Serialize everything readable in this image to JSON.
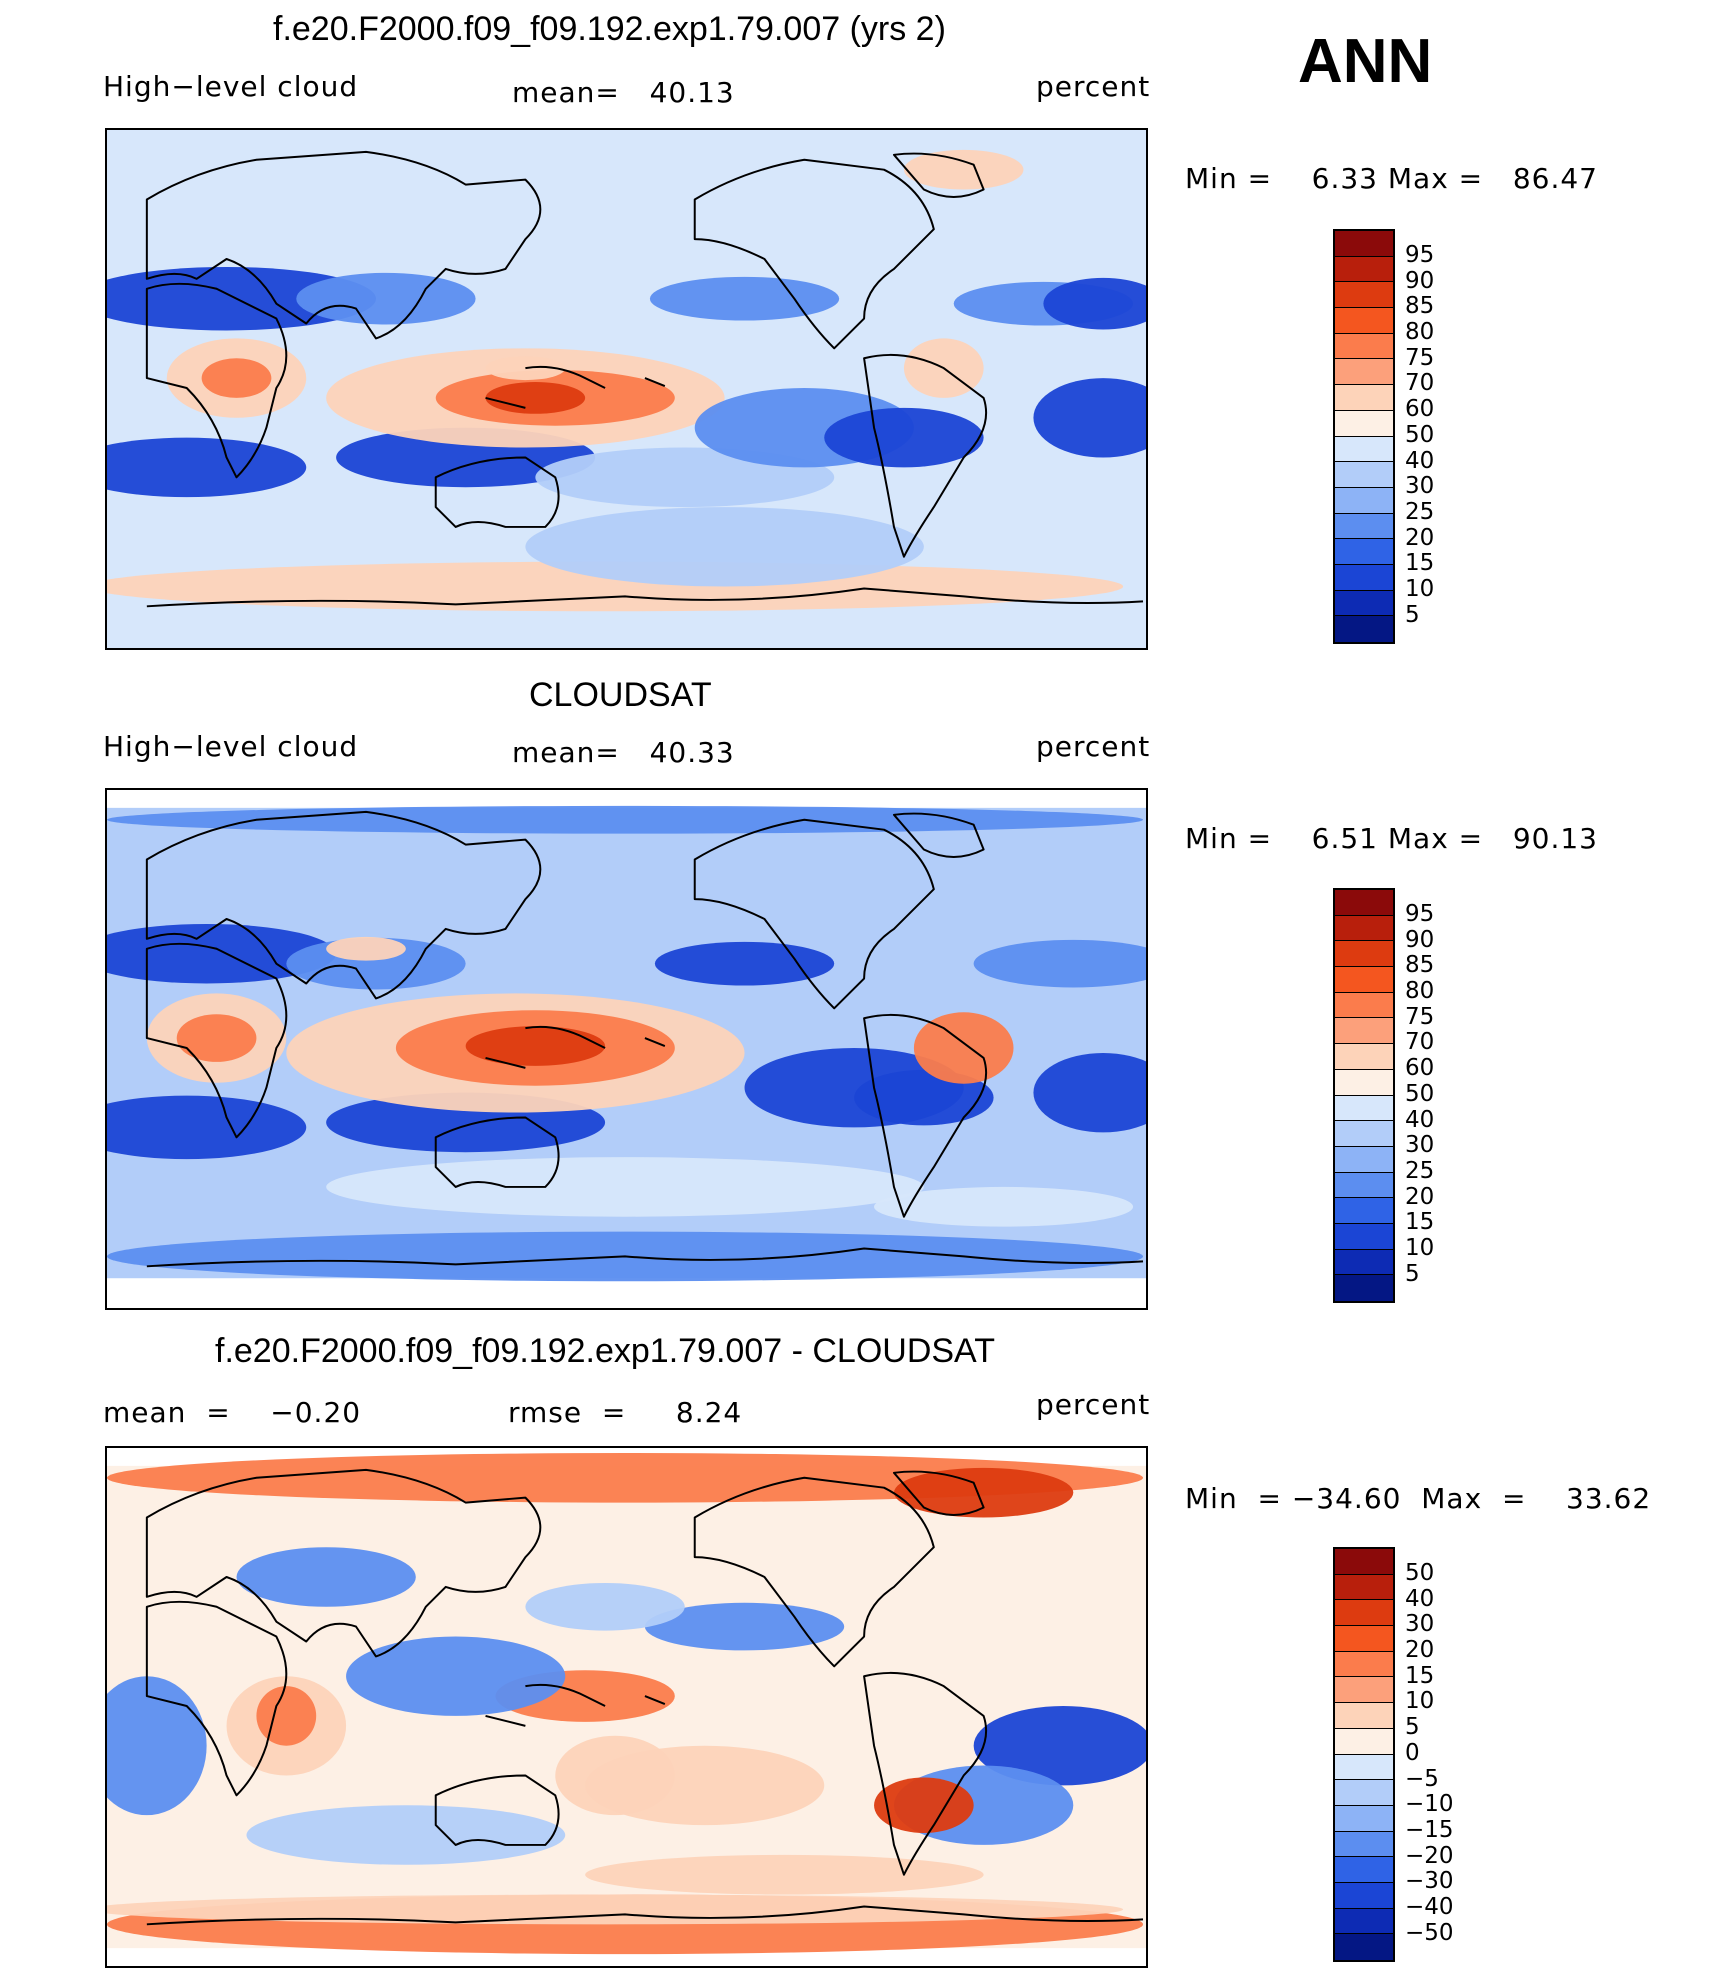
{
  "season": "ANN",
  "panels": [
    {
      "title": "f.e20.F2000.f09_f09.192.exp1.79.007 (yrs 2)",
      "left_label": "High−level cloud",
      "center_label": "mean=   40.13",
      "right_label": "percent",
      "minmax": "Min =    6.33 Max =   86.47",
      "colorbar": {
        "labels": [
          "95",
          "90",
          "85",
          "80",
          "75",
          "70",
          "60",
          "50",
          "40",
          "30",
          "25",
          "20",
          "15",
          "10",
          "5"
        ],
        "colors": [
          "#8b0a0a",
          "#b81f0c",
          "#dd3b10",
          "#f4561f",
          "#fb7c4c",
          "#fca07b",
          "#fdd3b9",
          "#fdf0e5",
          "#d7e7fb",
          "#b2cdf9",
          "#8db3f6",
          "#5c8ef0",
          "#2f63e6",
          "#1b45d5",
          "#0d2bb4",
          "#041784"
        ]
      },
      "palette": {
        "ocean": "#d7e7fb",
        "light_blue": "#b2cdf9",
        "mid_blue": "#5c8ef0",
        "dark_blue": "#1b45d5",
        "light_red": "#fdd3b9",
        "mid_red": "#fb7c4c",
        "dark_red": "#dd3b10"
      }
    },
    {
      "title": "CLOUDSAT",
      "left_label": "High−level cloud",
      "center_label": "mean=   40.33",
      "right_label": "percent",
      "minmax": "Min =    6.51 Max =   90.13",
      "colorbar": {
        "labels": [
          "95",
          "90",
          "85",
          "80",
          "75",
          "70",
          "60",
          "50",
          "40",
          "30",
          "25",
          "20",
          "15",
          "10",
          "5"
        ],
        "colors": [
          "#8b0a0a",
          "#b81f0c",
          "#dd3b10",
          "#f4561f",
          "#fb7c4c",
          "#fca07b",
          "#fdd3b9",
          "#fdf0e5",
          "#d7e7fb",
          "#b2cdf9",
          "#8db3f6",
          "#5c8ef0",
          "#2f63e6",
          "#1b45d5",
          "#0d2bb4",
          "#041784"
        ]
      },
      "palette": {
        "ocean": "#b2cdf9",
        "light_blue": "#d7e7fb",
        "mid_blue": "#5c8ef0",
        "dark_blue": "#1b45d5",
        "light_red": "#fdd3b9",
        "mid_red": "#fb7c4c",
        "dark_red": "#dd3b10"
      }
    },
    {
      "title": "f.e20.F2000.f09_f09.192.exp1.79.007 - CLOUDSAT",
      "left_label": "mean  =    −0.20",
      "center_label": "rmse  =     8.24",
      "right_label": "percent",
      "minmax": "Min  = −34.60  Max  =    33.62",
      "colorbar": {
        "labels": [
          "50",
          "40",
          "30",
          "20",
          "15",
          "10",
          "5",
          "0",
          "−5",
          "−10",
          "−15",
          "−20",
          "−30",
          "−40",
          "−50"
        ],
        "colors": [
          "#8b0a0a",
          "#b81f0c",
          "#dd3b10",
          "#f4561f",
          "#fb7c4c",
          "#fca07b",
          "#fdd3b9",
          "#fdf0e5",
          "#d7e7fb",
          "#b2cdf9",
          "#8db3f6",
          "#5c8ef0",
          "#2f63e6",
          "#1b45d5",
          "#0d2bb4",
          "#041784"
        ]
      },
      "palette": {
        "ocean": "#fdf0e5",
        "light_blue": "#b2cdf9",
        "mid_blue": "#5c8ef0",
        "dark_blue": "#1b45d5",
        "light_red": "#fdd3b9",
        "mid_red": "#fb7c4c",
        "dark_red": "#dd3b10"
      }
    }
  ]
}
